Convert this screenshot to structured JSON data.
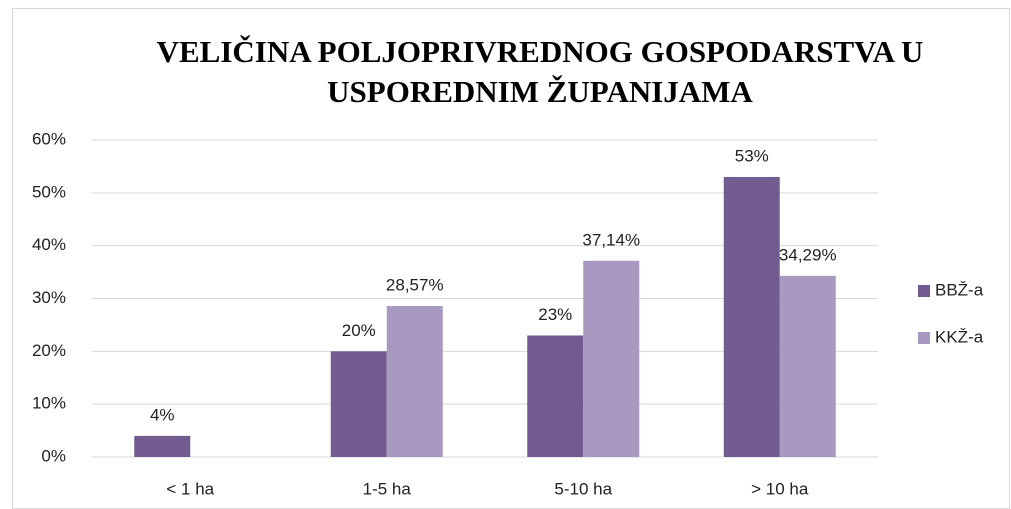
{
  "chart_data": {
    "type": "bar",
    "title": "VELIČINA POLJOPRIVREDNOG GOSPODARSTVA U USPOREDNIM ŽUPANIJAMA",
    "categories": [
      "< 1 ha",
      "1-5 ha",
      "5-10 ha",
      ">  10 ha"
    ],
    "series": [
      {
        "name": "BBŽ-a",
        "color": "#725b8f",
        "values": [
          4,
          20,
          23,
          53
        ],
        "value_labels": [
          "4%",
          "20%",
          "23%",
          "53%"
        ]
      },
      {
        "name": "KKŽ-a",
        "color": "#a899c1",
        "values": [
          null,
          28.57,
          37.14,
          34.29
        ],
        "value_labels": [
          null,
          "28,57%",
          "37,14%",
          "34,29%"
        ]
      }
    ],
    "ylim": [
      0,
      60
    ],
    "yticks": [
      {
        "value": 0,
        "label": "0%"
      },
      {
        "value": 10,
        "label": "10%"
      },
      {
        "value": 20,
        "label": "20%"
      },
      {
        "value": 30,
        "label": "30%"
      },
      {
        "value": 40,
        "label": "40%"
      },
      {
        "value": 50,
        "label": "50%"
      },
      {
        "value": 60,
        "label": "60%"
      }
    ],
    "grid": true,
    "legend": "right"
  }
}
